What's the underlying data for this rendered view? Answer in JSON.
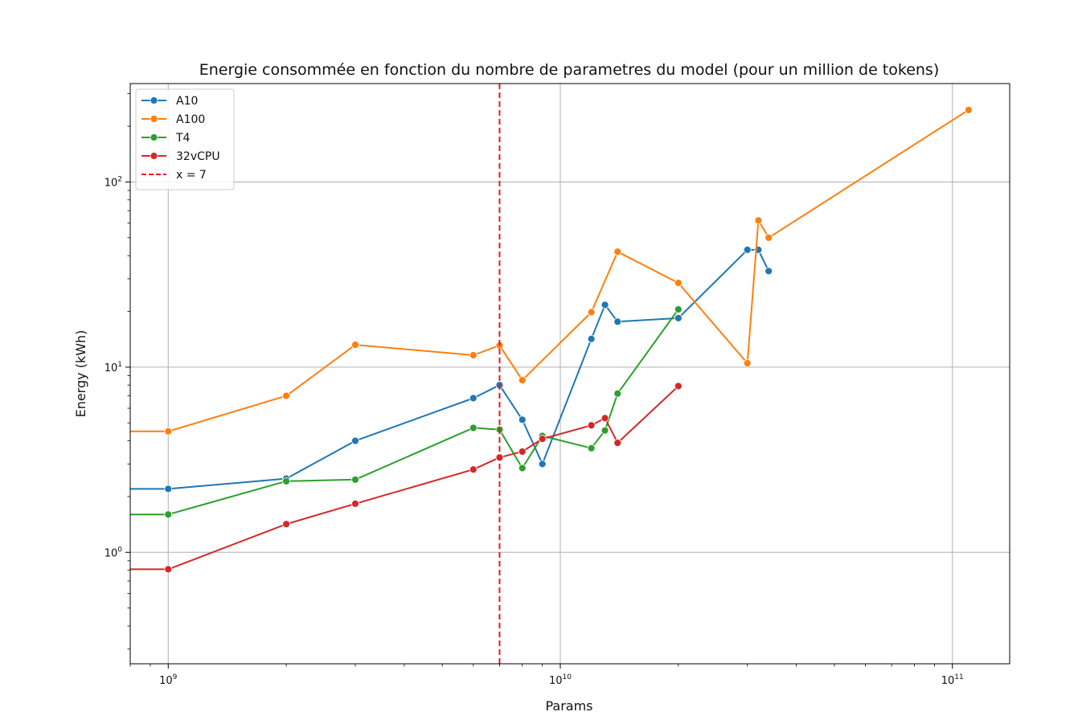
{
  "chart_data": {
    "type": "line",
    "title": "Energie consommée en fonction du nombre de parametres du model (pour un million de tokens)",
    "xlabel": "Params",
    "ylabel": "Energy (kWh)",
    "xscale": "log",
    "yscale": "log",
    "xlim": [
      800000000,
      140000000000
    ],
    "ylim": [
      0.25,
      340
    ],
    "grid": true,
    "legend_position": "upper-left",
    "x_ticks": [
      {
        "value": 1000000000,
        "base": "10",
        "exp": "9"
      },
      {
        "value": 10000000000,
        "base": "10",
        "exp": "10"
      },
      {
        "value": 100000000000,
        "base": "10",
        "exp": "11"
      }
    ],
    "y_ticks": [
      {
        "value": 1,
        "base": "10",
        "exp": "0"
      },
      {
        "value": 10,
        "base": "10",
        "exp": "1"
      },
      {
        "value": 100,
        "base": "10",
        "exp": "2"
      }
    ],
    "series": [
      {
        "name": "A10",
        "color": "#1f77b4",
        "x": [
          800000000,
          1000000000,
          2000000000,
          3000000000,
          6000000000,
          7000000000,
          8000000000,
          9000000000,
          12000000000,
          13000000000,
          14000000000,
          20000000000,
          30000000000,
          32000000000,
          34000000000
        ],
        "y": [
          2.2,
          2.2,
          2.5,
          4.0,
          6.8,
          8.0,
          5.2,
          3.0,
          14.2,
          21.7,
          17.6,
          18.4,
          43.0,
          43.0,
          33.0
        ],
        "markers": [
          false,
          true,
          true,
          true,
          true,
          true,
          true,
          true,
          true,
          true,
          true,
          true,
          true,
          true,
          true
        ]
      },
      {
        "name": "A100",
        "color": "#ff7f0e",
        "x": [
          800000000,
          1000000000,
          2000000000,
          3000000000,
          6000000000,
          7000000000,
          8000000000,
          12000000000,
          14000000000,
          20000000000,
          30000000000,
          32000000000,
          34000000000,
          110000000000
        ],
        "y": [
          4.5,
          4.5,
          7.0,
          13.2,
          11.6,
          13.1,
          8.5,
          19.8,
          42.0,
          28.5,
          10.5,
          62.0,
          50.0,
          245.0
        ],
        "markers": [
          false,
          true,
          true,
          true,
          true,
          true,
          true,
          true,
          true,
          true,
          true,
          true,
          true,
          true
        ]
      },
      {
        "name": "T4",
        "color": "#2ca02c",
        "x": [
          800000000,
          1000000000,
          2000000000,
          3000000000,
          6000000000,
          7000000000,
          8000000000,
          9000000000,
          12000000000,
          13000000000,
          14000000000,
          20000000000
        ],
        "y": [
          1.6,
          1.6,
          2.42,
          2.47,
          4.7,
          4.6,
          2.85,
          4.25,
          3.65,
          4.55,
          7.2,
          20.5
        ],
        "markers": [
          false,
          true,
          true,
          true,
          true,
          true,
          true,
          true,
          true,
          true,
          true,
          true
        ]
      },
      {
        "name": "32vCPU",
        "color": "#d62728",
        "x": [
          800000000,
          1000000000,
          2000000000,
          3000000000,
          6000000000,
          7000000000,
          8000000000,
          9000000000,
          12000000000,
          13000000000,
          14000000000,
          20000000000
        ],
        "y": [
          0.81,
          0.81,
          1.42,
          1.83,
          2.8,
          3.25,
          3.5,
          4.1,
          4.85,
          5.3,
          3.9,
          7.9
        ],
        "markers": [
          false,
          true,
          true,
          true,
          true,
          true,
          true,
          true,
          true,
          true,
          true,
          true
        ]
      }
    ],
    "vline": {
      "name": "x = 7",
      "x": 7000000000,
      "color": "#e41a1c",
      "style": "dashed"
    }
  }
}
